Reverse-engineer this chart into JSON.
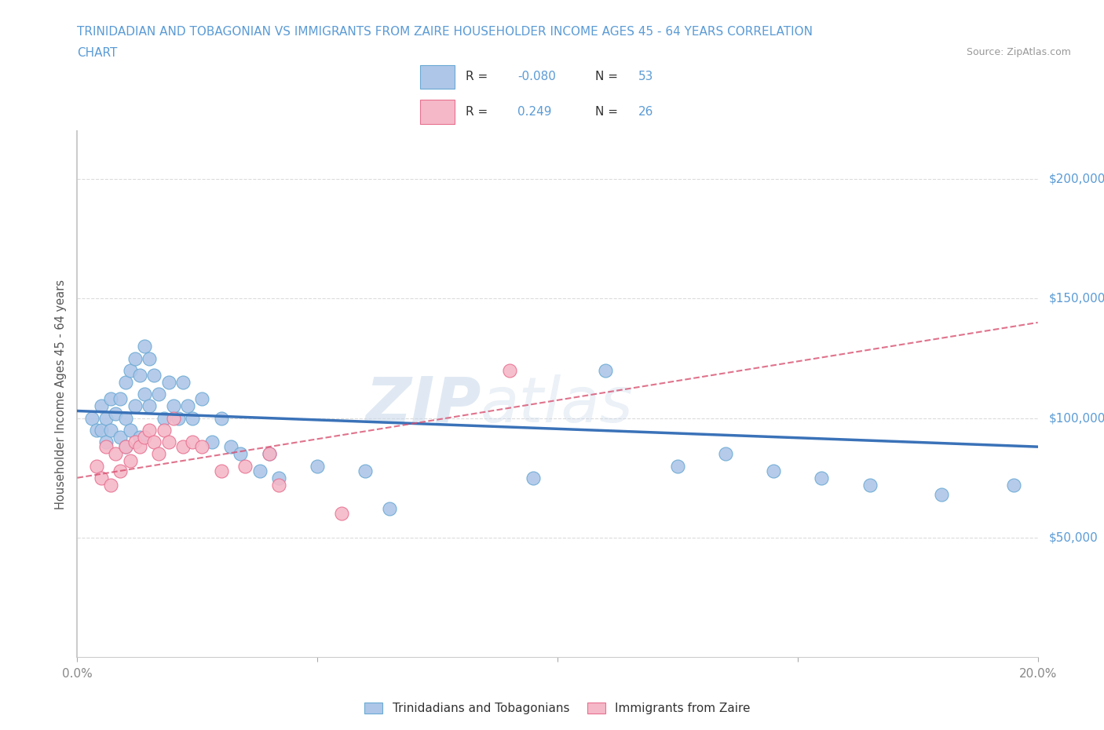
{
  "title_line1": "TRINIDADIAN AND TOBAGONIAN VS IMMIGRANTS FROM ZAIRE HOUSEHOLDER INCOME AGES 45 - 64 YEARS CORRELATION",
  "title_line2": "CHART",
  "source_text": "Source: ZipAtlas.com",
  "ylabel": "Householder Income Ages 45 - 64 years",
  "watermark_part1": "ZIP",
  "watermark_part2": "atlas",
  "blue_color": "#aec6e8",
  "pink_color": "#f5b8c8",
  "blue_edge_color": "#6aaad4",
  "pink_edge_color": "#e87090",
  "blue_line_color": "#3a72b8",
  "pink_line_color": "#d85070",
  "axis_label_color": "#5b9bd5",
  "title_color": "#5b9bd5",
  "xmin": 0.0,
  "xmax": 0.2,
  "ymin": 0,
  "ymax": 220000,
  "ytick_values": [
    50000,
    100000,
    150000,
    200000
  ],
  "ytick_labels": [
    "$50,000",
    "$100,000",
    "$150,000",
    "$200,000"
  ],
  "xtick_values": [
    0.0,
    0.05,
    0.1,
    0.15,
    0.2
  ],
  "xtick_labels": [
    "0.0%",
    "",
    "",
    "",
    "20.0%"
  ],
  "blue_scatter_x": [
    0.003,
    0.004,
    0.005,
    0.005,
    0.006,
    0.006,
    0.007,
    0.007,
    0.008,
    0.009,
    0.009,
    0.01,
    0.01,
    0.01,
    0.011,
    0.011,
    0.012,
    0.012,
    0.013,
    0.013,
    0.014,
    0.014,
    0.015,
    0.015,
    0.016,
    0.017,
    0.018,
    0.019,
    0.02,
    0.021,
    0.022,
    0.023,
    0.024,
    0.026,
    0.028,
    0.03,
    0.032,
    0.034,
    0.038,
    0.04,
    0.042,
    0.05,
    0.06,
    0.065,
    0.095,
    0.11,
    0.125,
    0.135,
    0.145,
    0.155,
    0.165,
    0.18,
    0.195
  ],
  "blue_scatter_y": [
    100000,
    95000,
    105000,
    95000,
    100000,
    90000,
    108000,
    95000,
    102000,
    108000,
    92000,
    115000,
    100000,
    88000,
    120000,
    95000,
    125000,
    105000,
    118000,
    92000,
    130000,
    110000,
    125000,
    105000,
    118000,
    110000,
    100000,
    115000,
    105000,
    100000,
    115000,
    105000,
    100000,
    108000,
    90000,
    100000,
    88000,
    85000,
    78000,
    85000,
    75000,
    80000,
    78000,
    62000,
    75000,
    120000,
    80000,
    85000,
    78000,
    75000,
    72000,
    68000,
    72000
  ],
  "pink_scatter_x": [
    0.004,
    0.005,
    0.006,
    0.007,
    0.008,
    0.009,
    0.01,
    0.011,
    0.012,
    0.013,
    0.014,
    0.015,
    0.016,
    0.017,
    0.018,
    0.019,
    0.02,
    0.022,
    0.024,
    0.026,
    0.03,
    0.035,
    0.04,
    0.042,
    0.055,
    0.09
  ],
  "pink_scatter_y": [
    80000,
    75000,
    88000,
    72000,
    85000,
    78000,
    88000,
    82000,
    90000,
    88000,
    92000,
    95000,
    90000,
    85000,
    95000,
    90000,
    100000,
    88000,
    90000,
    88000,
    78000,
    80000,
    85000,
    72000,
    60000,
    120000
  ],
  "blue_trend_x": [
    0.0,
    0.2
  ],
  "blue_trend_y": [
    103000,
    88000
  ],
  "pink_trend_x": [
    0.0,
    0.2
  ],
  "pink_trend_y": [
    75000,
    140000
  ],
  "grid_color": "#d8d8d8",
  "background_color": "#ffffff"
}
